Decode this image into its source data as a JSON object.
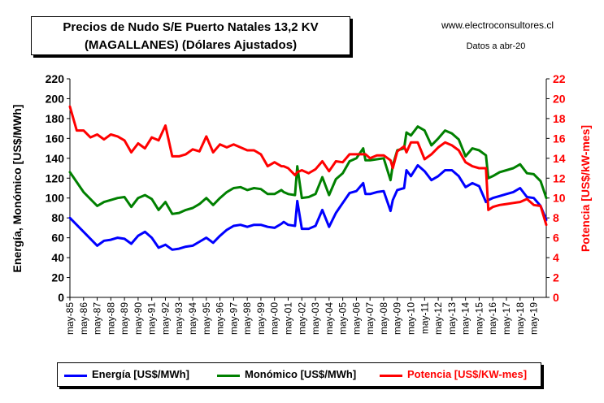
{
  "title": {
    "line1": "Precios de Nudo S/E Puerto Natales 13,2 KV",
    "line2": "(MAGALLANES) (Dólares Ajustados)"
  },
  "source": "www.electroconsultores.cl",
  "date_note": "Datos a abr-20",
  "colors": {
    "energia": "#0000ff",
    "monomico": "#008000",
    "potencia": "#ff0000"
  },
  "chart_data": {
    "type": "line",
    "title": "Precios de Nudo S/E Puerto Natales 13,2 KV (MAGALLANES) (Dólares Ajustados)",
    "xlabel": "",
    "ylabel": "Energía, Monómico [US$/MWh]",
    "y2label": "Potencia [US$/kW-mes]",
    "ylim": [
      0,
      220
    ],
    "y2lim": [
      0,
      22
    ],
    "yticks": [
      0,
      20,
      40,
      60,
      80,
      100,
      120,
      140,
      160,
      180,
      200,
      220
    ],
    "y2ticks": [
      0,
      2,
      4,
      6,
      8,
      10,
      12,
      14,
      16,
      18,
      20,
      22
    ],
    "xlim": [
      1985.33,
      2020.25
    ],
    "x_tick_labels": [
      "may-85",
      "may-86",
      "may-87",
      "may-88",
      "may-89",
      "may-90",
      "may-91",
      "may-92",
      "may-93",
      "may-94",
      "may-95",
      "may-96",
      "may-97",
      "may-98",
      "may-99",
      "may-00",
      "may-01",
      "may-02",
      "may-03",
      "may-04",
      "may-05",
      "may-06",
      "may-07",
      "may-08",
      "may-09",
      "may-10",
      "may-11",
      "may-12",
      "may-13",
      "may-14",
      "may-15",
      "may-16",
      "may-17",
      "may-18",
      "may-19"
    ],
    "grid": false,
    "legend_position": "bottom",
    "series": [
      {
        "name": "Energía [US$/MWh]",
        "axis": "left",
        "x": [
          1985.33,
          1986.33,
          1987.33,
          1987.83,
          1988.33,
          1988.83,
          1989.33,
          1989.83,
          1990.33,
          1990.83,
          1991.33,
          1991.83,
          1992.33,
          1992.83,
          1993.33,
          1993.83,
          1994.33,
          1994.83,
          1995.33,
          1995.83,
          1996.33,
          1996.83,
          1997.33,
          1997.83,
          1998.33,
          1998.83,
          1999.33,
          1999.83,
          2000.33,
          2000.83,
          2001.0,
          2001.33,
          2001.83,
          2002.0,
          2002.33,
          2002.83,
          2003.33,
          2003.83,
          2004.33,
          2004.83,
          2005.33,
          2005.83,
          2006.33,
          2006.83,
          2007.0,
          2007.33,
          2007.83,
          2008.33,
          2008.83,
          2009.0,
          2009.33,
          2009.83,
          2010.0,
          2010.33,
          2010.83,
          2011.33,
          2011.83,
          2012.33,
          2012.83,
          2013.33,
          2013.83,
          2014.33,
          2014.83,
          2015.33,
          2015.83,
          2016.0,
          2016.33,
          2016.83,
          2017.33,
          2017.83,
          2018.33,
          2018.83,
          2019.33,
          2019.83,
          2020.25
        ],
        "values": [
          80,
          66,
          52,
          57,
          58,
          60,
          59,
          54,
          62,
          66,
          60,
          50,
          53,
          48,
          49,
          51,
          52,
          56,
          60,
          55,
          62,
          68,
          72,
          73,
          71,
          73,
          73,
          71,
          70,
          74,
          76,
          73,
          72,
          97,
          69,
          69,
          72,
          88,
          71,
          85,
          95,
          105,
          107,
          115,
          104,
          104,
          106,
          107,
          87,
          98,
          108,
          110,
          128,
          122,
          133,
          127,
          118,
          122,
          128,
          128,
          122,
          111,
          115,
          112,
          96,
          98,
          100,
          102,
          104,
          106,
          110,
          101,
          100,
          92,
          78
        ]
      },
      {
        "name": "Monómico [US$/MWh]",
        "axis": "left",
        "x": [
          1985.33,
          1986.33,
          1987.33,
          1987.83,
          1988.33,
          1988.83,
          1989.33,
          1989.83,
          1990.33,
          1990.83,
          1991.33,
          1991.83,
          1992.33,
          1992.83,
          1993.33,
          1993.83,
          1994.33,
          1994.83,
          1995.33,
          1995.83,
          1996.33,
          1996.83,
          1997.33,
          1997.83,
          1998.33,
          1998.83,
          1999.33,
          1999.83,
          2000.33,
          2000.83,
          2001.0,
          2001.33,
          2001.83,
          2002.0,
          2002.33,
          2002.83,
          2003.33,
          2003.83,
          2004.33,
          2004.83,
          2005.33,
          2005.83,
          2006.33,
          2006.83,
          2007.0,
          2007.33,
          2007.83,
          2008.33,
          2008.83,
          2009.0,
          2009.33,
          2009.83,
          2010.0,
          2010.33,
          2010.83,
          2011.33,
          2011.83,
          2012.33,
          2012.83,
          2013.33,
          2013.83,
          2014.33,
          2014.83,
          2015.33,
          2015.83,
          2016.0,
          2016.33,
          2016.83,
          2017.33,
          2017.83,
          2018.33,
          2018.83,
          2019.33,
          2019.83,
          2020.25
        ],
        "values": [
          126,
          106,
          92,
          96,
          98,
          100,
          101,
          91,
          100,
          103,
          99,
          88,
          96,
          84,
          85,
          88,
          90,
          94,
          100,
          93,
          100,
          106,
          110,
          111,
          108,
          110,
          109,
          104,
          104,
          108,
          106,
          104,
          103,
          132,
          100,
          101,
          104,
          121,
          103,
          119,
          125,
          137,
          140,
          150,
          138,
          138,
          139,
          140,
          118,
          133,
          148,
          150,
          166,
          163,
          172,
          168,
          153,
          160,
          168,
          165,
          159,
          142,
          150,
          148,
          143,
          120,
          122,
          126,
          128,
          130,
          134,
          125,
          124,
          117,
          100
        ]
      },
      {
        "name": "Potencia [US$/KW-mes]",
        "axis": "right",
        "x": [
          1985.33,
          1985.83,
          1986.33,
          1986.83,
          1987.33,
          1987.83,
          1988.33,
          1988.83,
          1989.33,
          1989.83,
          1990.33,
          1990.83,
          1991.33,
          1991.83,
          1992.33,
          1992.83,
          1993.33,
          1993.83,
          1994.33,
          1994.83,
          1995.33,
          1995.83,
          1996.33,
          1996.83,
          1997.33,
          1997.83,
          1998.33,
          1998.83,
          1999.33,
          1999.83,
          2000.33,
          2000.83,
          2001.0,
          2001.33,
          2001.83,
          2002.0,
          2002.33,
          2002.83,
          2003.33,
          2003.83,
          2004.33,
          2004.83,
          2005.33,
          2005.83,
          2006.33,
          2006.83,
          2007.0,
          2007.33,
          2007.83,
          2008.33,
          2008.83,
          2009.0,
          2009.33,
          2009.83,
          2010.0,
          2010.33,
          2010.83,
          2011.33,
          2011.83,
          2012.33,
          2012.83,
          2013.33,
          2013.83,
          2014.33,
          2014.83,
          2015.33,
          2015.83,
          2016.0,
          2016.33,
          2016.83,
          2017.33,
          2017.83,
          2018.33,
          2018.83,
          2019.33,
          2019.83,
          2020.25
        ],
        "values": [
          19.2,
          16.8,
          16.8,
          16.1,
          16.4,
          15.9,
          16.4,
          16.2,
          15.8,
          14.6,
          15.5,
          15.0,
          16.1,
          15.8,
          17.3,
          14.2,
          14.2,
          14.4,
          14.9,
          14.7,
          16.2,
          14.6,
          15.4,
          15.1,
          15.4,
          15.1,
          14.8,
          14.8,
          14.4,
          13.2,
          13.6,
          13.2,
          13.2,
          13.0,
          12.3,
          12.6,
          12.8,
          12.5,
          12.9,
          13.7,
          12.7,
          13.7,
          13.6,
          14.4,
          14.4,
          14.4,
          14.4,
          14.0,
          14.3,
          14.3,
          13.8,
          13.0,
          14.7,
          15.2,
          14.6,
          15.6,
          15.6,
          13.9,
          14.4,
          15.1,
          15.6,
          15.3,
          14.8,
          13.6,
          13.2,
          13.0,
          13.0,
          8.8,
          9.1,
          9.3,
          9.4,
          9.5,
          9.6,
          9.9,
          9.3,
          9.2,
          7.3
        ]
      }
    ]
  },
  "legend": {
    "energia": "Energía [US$/MWh]",
    "monomico": "Monómico [US$/MWh]",
    "potencia": "Potencia [US$/KW-mes]"
  }
}
